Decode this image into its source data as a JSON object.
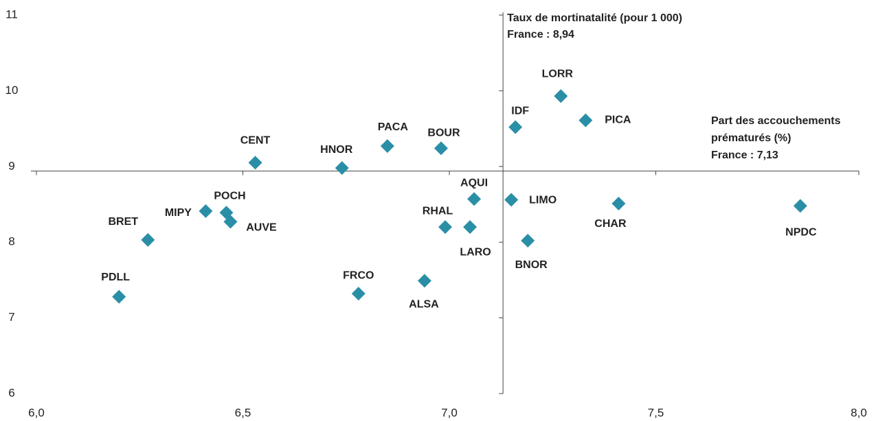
{
  "chart_data": {
    "type": "scatter",
    "x_title": [
      "Part des accouchements",
      "prématurés (%)",
      "France : 7,13"
    ],
    "y_title": [
      "Taux de mortinatalité (pour 1 000)",
      "France : 8,94"
    ],
    "x_cross": 7.13,
    "y_cross": 8.94,
    "color": "#2a8fa6",
    "labels": [
      "PDLL",
      "BRET",
      "MIPY",
      "POCH",
      "AUVE",
      "CENT",
      "HNOR",
      "PACA",
      "BOUR",
      "FRCO",
      "ALSA",
      "RHAL",
      "AQUI",
      "LARO",
      "LIMO",
      "IDF",
      "BNOR",
      "LORR",
      "PICA",
      "CHAR",
      "NPDC"
    ],
    "x": [
      6.2,
      6.27,
      6.41,
      6.46,
      6.47,
      6.53,
      6.74,
      6.85,
      6.98,
      6.78,
      6.94,
      6.99,
      7.06,
      7.05,
      7.15,
      7.16,
      7.19,
      7.27,
      7.33,
      7.41,
      7.85
    ],
    "values": [
      7.28,
      8.03,
      8.41,
      8.39,
      8.27,
      9.05,
      8.98,
      9.27,
      9.24,
      7.32,
      7.49,
      8.2,
      8.57,
      8.2,
      8.56,
      9.52,
      8.02,
      9.93,
      9.61,
      8.51,
      8.48
    ],
    "xlim": [
      6,
      8
    ],
    "ylim": [
      6,
      11
    ],
    "xticks": [
      {
        "value": 6,
        "label": "6,0"
      },
      {
        "value": 6.5,
        "label": "6,5"
      },
      {
        "value": 7,
        "label": "7,0"
      },
      {
        "value": 7.5,
        "label": "7,5"
      },
      {
        "value": 8,
        "label": "8,0"
      }
    ],
    "yticks": [
      6,
      7,
      8,
      9,
      10,
      11
    ]
  }
}
